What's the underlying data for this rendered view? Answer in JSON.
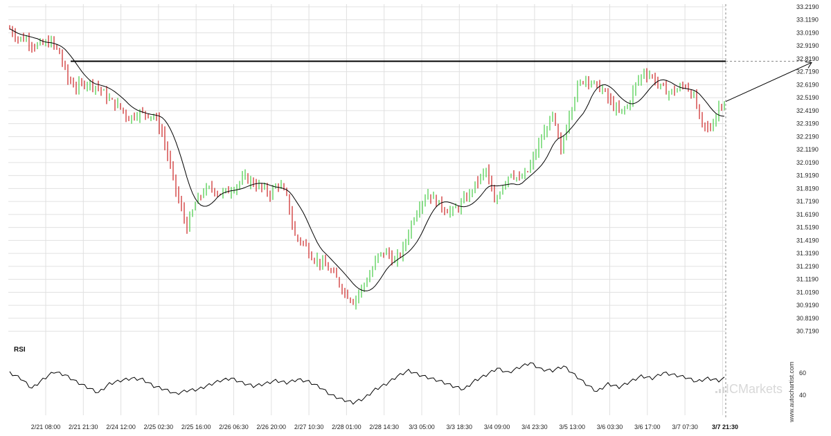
{
  "chart_data": {
    "type": "candlestick",
    "instrument": "",
    "y_ticks": [
      "33.2190",
      "33.1190",
      "33.0190",
      "32.9190",
      "32.8190",
      "32.7190",
      "32.6190",
      "32.5190",
      "32.4190",
      "32.3190",
      "32.2190",
      "32.1190",
      "32.0190",
      "31.9190",
      "31.8190",
      "31.7190",
      "31.6190",
      "31.5190",
      "31.4190",
      "31.3190",
      "31.2190",
      "31.1190",
      "31.0190",
      "30.9190",
      "30.8190",
      "30.7190"
    ],
    "ylim": [
      30.69,
      33.24
    ],
    "x_ticks": [
      "2/21 08:00",
      "2/21 21:30",
      "2/24 12:00",
      "2/25 02:30",
      "2/25 16:00",
      "2/26 06:30",
      "2/26 20:00",
      "2/27 10:30",
      "2/28 01:00",
      "2/28 14:30",
      "3/3 05:00",
      "3/3 18:30",
      "3/4 09:00",
      "3/4 23:30",
      "3/5 13:00",
      "3/6 03:30",
      "3/6 17:00",
      "3/7 07:30",
      "3/7 21:30"
    ],
    "price_anchors": [
      [
        0,
        33.05
      ],
      [
        3,
        32.98
      ],
      [
        6,
        32.97
      ],
      [
        9,
        32.92
      ],
      [
        12,
        32.93
      ],
      [
        15,
        32.95
      ],
      [
        18,
        32.86
      ],
      [
        21,
        32.66
      ],
      [
        24,
        32.6
      ],
      [
        28,
        32.64
      ],
      [
        32,
        32.6
      ],
      [
        36,
        32.5
      ],
      [
        40,
        32.44
      ],
      [
        43,
        32.36
      ],
      [
        46,
        32.4
      ],
      [
        49,
        32.4
      ],
      [
        52,
        32.38
      ],
      [
        55,
        32.25
      ],
      [
        58,
        31.98
      ],
      [
        61,
        31.72
      ],
      [
        64,
        31.52
      ],
      [
        67,
        31.7
      ],
      [
        70,
        31.8
      ],
      [
        73,
        31.82
      ],
      [
        76,
        31.78
      ],
      [
        79,
        31.8
      ],
      [
        82,
        31.85
      ],
      [
        85,
        31.9
      ],
      [
        88,
        31.86
      ],
      [
        91,
        31.82
      ],
      [
        94,
        31.78
      ],
      [
        97,
        31.86
      ],
      [
        100,
        31.75
      ],
      [
        103,
        31.45
      ],
      [
        106,
        31.4
      ],
      [
        109,
        31.3
      ],
      [
        112,
        31.25
      ],
      [
        115,
        31.2
      ],
      [
        118,
        31.12
      ],
      [
        121,
        31.02
      ],
      [
        124,
        30.95
      ],
      [
        127,
        31.05
      ],
      [
        130,
        31.15
      ],
      [
        133,
        31.3
      ],
      [
        136,
        31.33
      ],
      [
        139,
        31.25
      ],
      [
        142,
        31.35
      ],
      [
        145,
        31.55
      ],
      [
        148,
        31.7
      ],
      [
        151,
        31.78
      ],
      [
        154,
        31.72
      ],
      [
        157,
        31.66
      ],
      [
        160,
        31.64
      ],
      [
        163,
        31.7
      ],
      [
        166,
        31.78
      ],
      [
        169,
        31.88
      ],
      [
        172,
        31.96
      ],
      [
        175,
        31.7
      ],
      [
        178,
        31.85
      ],
      [
        181,
        31.95
      ],
      [
        184,
        31.88
      ],
      [
        187,
        31.95
      ],
      [
        190,
        32.1
      ],
      [
        193,
        32.25
      ],
      [
        196,
        32.38
      ],
      [
        199,
        32.1
      ],
      [
        202,
        32.4
      ],
      [
        205,
        32.6
      ],
      [
        208,
        32.68
      ],
      [
        211,
        32.62
      ],
      [
        214,
        32.58
      ],
      [
        217,
        32.48
      ],
      [
        220,
        32.4
      ],
      [
        223,
        32.45
      ],
      [
        226,
        32.62
      ],
      [
        229,
        32.72
      ],
      [
        232,
        32.68
      ],
      [
        235,
        32.6
      ],
      [
        238,
        32.56
      ],
      [
        241,
        32.58
      ],
      [
        244,
        32.62
      ],
      [
        247,
        32.52
      ],
      [
        250,
        32.3
      ],
      [
        253,
        32.28
      ],
      [
        256,
        32.45
      ],
      [
        258,
        32.5
      ]
    ],
    "resistance_level": 32.8,
    "projection_target": 32.79,
    "rsi": {
      "label": "RSI",
      "y_ticks": [
        "60",
        "40"
      ],
      "ylim": [
        22,
        77
      ],
      "anchors": [
        [
          0,
          60
        ],
        [
          4,
          55
        ],
        [
          8,
          46
        ],
        [
          12,
          54
        ],
        [
          16,
          61
        ],
        [
          20,
          58
        ],
        [
          24,
          52
        ],
        [
          28,
          47
        ],
        [
          32,
          42
        ],
        [
          36,
          50
        ],
        [
          40,
          53
        ],
        [
          44,
          55
        ],
        [
          48,
          54
        ],
        [
          52,
          48
        ],
        [
          56,
          45
        ],
        [
          60,
          41
        ],
        [
          64,
          44
        ],
        [
          68,
          45
        ],
        [
          72,
          49
        ],
        [
          76,
          53
        ],
        [
          80,
          55
        ],
        [
          84,
          51
        ],
        [
          88,
          48
        ],
        [
          92,
          50
        ],
        [
          96,
          53
        ],
        [
          100,
          51
        ],
        [
          104,
          54
        ],
        [
          108,
          52
        ],
        [
          112,
          47
        ],
        [
          116,
          40
        ],
        [
          120,
          36
        ],
        [
          124,
          33
        ],
        [
          128,
          37
        ],
        [
          132,
          45
        ],
        [
          136,
          50
        ],
        [
          140,
          57
        ],
        [
          144,
          62
        ],
        [
          148,
          58
        ],
        [
          152,
          55
        ],
        [
          156,
          52
        ],
        [
          160,
          48
        ],
        [
          164,
          45
        ],
        [
          168,
          53
        ],
        [
          172,
          58
        ],
        [
          176,
          64
        ],
        [
          180,
          60
        ],
        [
          184,
          65
        ],
        [
          188,
          69
        ],
        [
          192,
          63
        ],
        [
          196,
          62
        ],
        [
          200,
          66
        ],
        [
          204,
          58
        ],
        [
          208,
          50
        ],
        [
          212,
          43
        ],
        [
          216,
          50
        ],
        [
          220,
          47
        ],
        [
          224,
          52
        ],
        [
          228,
          57
        ],
        [
          232,
          55
        ],
        [
          236,
          60
        ],
        [
          240,
          58
        ],
        [
          244,
          56
        ],
        [
          248,
          52
        ],
        [
          252,
          55
        ],
        [
          256,
          53
        ],
        [
          258,
          55
        ]
      ]
    }
  },
  "brand": {
    "name": "ICMarkets",
    "watermark": "www.autochartist.com"
  },
  "colors": {
    "up": "#44cc44",
    "down": "#cc2222",
    "line": "#000000",
    "grid": "#e0e0e0",
    "dashed": "#888888"
  }
}
